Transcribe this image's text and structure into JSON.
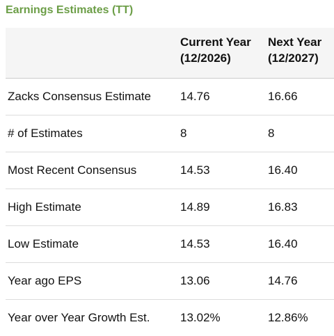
{
  "title": "Earnings Estimates (TT)",
  "header": {
    "col_current_line1": "Current Year",
    "col_current_line2": "(12/2026)",
    "col_next_line1": "Next Year",
    "col_next_line2": "(12/2027)"
  },
  "rows": [
    {
      "label": "Zacks Consensus Estimate",
      "current": "14.76",
      "next": "16.66"
    },
    {
      "label": "# of Estimates",
      "current": "8",
      "next": "8"
    },
    {
      "label": "Most Recent Consensus",
      "current": "14.53",
      "next": "16.40"
    },
    {
      "label": "High Estimate",
      "current": "14.89",
      "next": "16.83"
    },
    {
      "label": "Low Estimate",
      "current": "14.53",
      "next": "16.40"
    },
    {
      "label": "Year ago EPS",
      "current": "13.06",
      "next": "14.76"
    },
    {
      "label": "Year over Year Growth Est.",
      "current": "13.02%",
      "next": "12.86%"
    }
  ],
  "colors": {
    "title": "#6c9e47",
    "header_bg": "#f5f5f5",
    "row_border": "#dcdcdc"
  }
}
